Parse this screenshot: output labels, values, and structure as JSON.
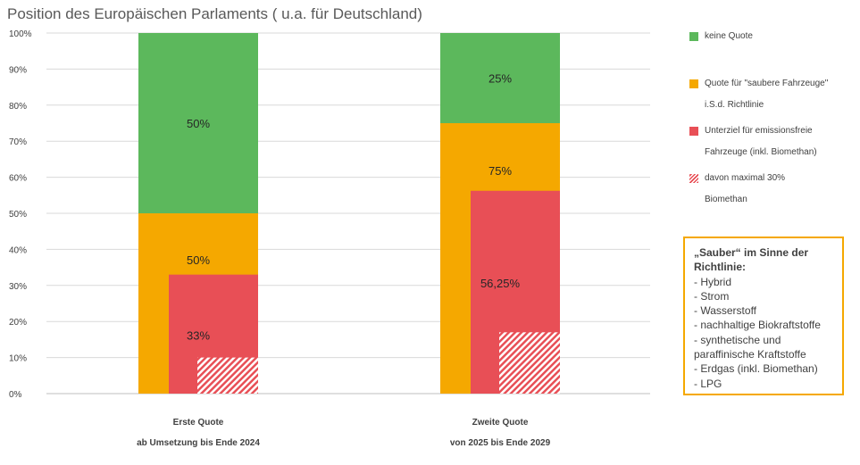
{
  "title": "Position des Europäischen  Parlaments ( u.a. für Deutschland)",
  "chart_data": {
    "type": "bar",
    "y_ticks": [
      "0%",
      "10%",
      "20%",
      "30%",
      "40%",
      "50%",
      "60%",
      "70%",
      "80%",
      "90%",
      "100%"
    ],
    "ylim": [
      0,
      100
    ],
    "grid": true,
    "legend_position": "right",
    "categories": [
      {
        "line1": "Erste Quote",
        "line2": "ab Umsetzung bis Ende 2024"
      },
      {
        "line1": "Zweite Quote",
        "line2": "von 2025 bis Ende 2029"
      }
    ],
    "series": [
      {
        "name": "keine Quote",
        "color": "#5cb85c",
        "values": [
          50,
          25
        ],
        "labels": [
          "50%",
          "25%"
        ]
      },
      {
        "name": "Quote für \"saubere Fahrzeuge\" i.S.d. Richtlinie",
        "color": "#f5a800",
        "values": [
          50,
          75
        ],
        "labels": [
          "50%",
          "75%"
        ]
      },
      {
        "name": "Unterziel für emissionsfreie Fahrzeuge (inkl. Biomethan)",
        "color": "#e84f56",
        "values": [
          33,
          56.25
        ],
        "labels": [
          "33%",
          "56,25%"
        ]
      },
      {
        "name": "davon maximal 30% Biomethan",
        "color": "#e84f56",
        "pattern": "hatch",
        "values": [
          10,
          17
        ],
        "labels": [
          "",
          ""
        ]
      }
    ]
  },
  "legend": {
    "items": [
      {
        "text": "keine Quote"
      },
      {
        "text": "Quote für \"saubere Fahrzeuge\"\ni.S.d. Richtlinie"
      },
      {
        "text": "Unterziel für emissionsfreie\nFahrzeuge (inkl. Biomethan)"
      },
      {
        "text": "davon maximal 30%\nBiomethan"
      }
    ]
  },
  "infobox": {
    "heading": "„Sauber“ im Sinne der\nRichtlinie:",
    "items": [
      "- Hybrid",
      "- Strom",
      "- Wasserstoff",
      "- nachhaltige Biokraftstoffe",
      "- synthetische und\nparaffinische Kraftstoffe",
      "- Erdgas (inkl. Biomethan)",
      "- LPG"
    ]
  }
}
